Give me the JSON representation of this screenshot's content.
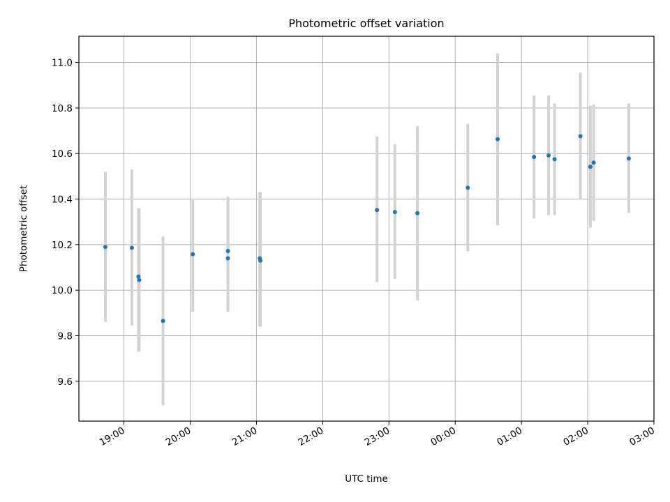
{
  "chart_data": {
    "type": "scatter",
    "title": "Photometric offset variation",
    "xlabel": "UTC time",
    "ylabel": "Photometric offset",
    "grid": true,
    "xlim_hours": [
      18.32,
      27.0
    ],
    "ylim": [
      9.425,
      11.115
    ],
    "x_tick_values_hours": [
      19,
      20,
      21,
      22,
      23,
      24,
      25,
      26,
      27
    ],
    "x_tick_labels": [
      "19:00",
      "20:00",
      "21:00",
      "22:00",
      "23:00",
      "00:00",
      "01:00",
      "02:00",
      "03:00"
    ],
    "y_ticks": [
      9.6,
      9.8,
      10.0,
      10.2,
      10.4,
      10.6,
      10.8,
      11.0
    ],
    "y_tick_labels": [
      "9.6",
      "9.8",
      "10.0",
      "10.2",
      "10.4",
      "10.6",
      "10.8",
      "11.0"
    ],
    "colors": {
      "point": "#1f77b4",
      "errorbar": "#d3d3d3",
      "grid": "#b0b0b0",
      "axis": "#000000"
    },
    "series": [
      {
        "name": "Photometric offset",
        "points": [
          {
            "x": 18.72,
            "y": 10.19,
            "ymin": 9.86,
            "ymax": 10.52
          },
          {
            "x": 19.12,
            "y": 10.186,
            "ymin": 9.845,
            "ymax": 10.53
          },
          {
            "x": 19.22,
            "y": 10.06,
            "ymin": 9.73,
            "ymax": 10.36
          },
          {
            "x": 19.23,
            "y": 10.045,
            "ymin": 9.73,
            "ymax": 10.36
          },
          {
            "x": 19.59,
            "y": 9.865,
            "ymin": 9.495,
            "ymax": 10.235
          },
          {
            "x": 20.04,
            "y": 10.158,
            "ymin": 9.905,
            "ymax": 10.395
          },
          {
            "x": 20.57,
            "y": 10.172,
            "ymin": 9.905,
            "ymax": 10.41
          },
          {
            "x": 20.57,
            "y": 10.14,
            "ymin": 9.905,
            "ymax": 10.41
          },
          {
            "x": 21.05,
            "y": 10.14,
            "ymin": 9.84,
            "ymax": 10.43
          },
          {
            "x": 21.06,
            "y": 10.13,
            "ymin": 9.84,
            "ymax": 10.43
          },
          {
            "x": 22.82,
            "y": 10.352,
            "ymin": 10.035,
            "ymax": 10.675
          },
          {
            "x": 23.09,
            "y": 10.343,
            "ymin": 10.05,
            "ymax": 10.64
          },
          {
            "x": 23.43,
            "y": 10.338,
            "ymin": 9.955,
            "ymax": 10.72
          },
          {
            "x": 24.19,
            "y": 10.45,
            "ymin": 10.17,
            "ymax": 10.73
          },
          {
            "x": 24.64,
            "y": 10.663,
            "ymin": 10.285,
            "ymax": 11.04
          },
          {
            "x": 25.19,
            "y": 10.585,
            "ymin": 10.315,
            "ymax": 10.855
          },
          {
            "x": 25.41,
            "y": 10.592,
            "ymin": 10.33,
            "ymax": 10.855
          },
          {
            "x": 25.5,
            "y": 10.575,
            "ymin": 10.33,
            "ymax": 10.82
          },
          {
            "x": 25.89,
            "y": 10.676,
            "ymin": 10.4,
            "ymax": 10.955
          },
          {
            "x": 26.04,
            "y": 10.542,
            "ymin": 10.275,
            "ymax": 10.81
          },
          {
            "x": 26.09,
            "y": 10.56,
            "ymin": 10.305,
            "ymax": 10.815
          },
          {
            "x": 26.62,
            "y": 10.578,
            "ymin": 10.34,
            "ymax": 10.82
          }
        ]
      }
    ]
  }
}
